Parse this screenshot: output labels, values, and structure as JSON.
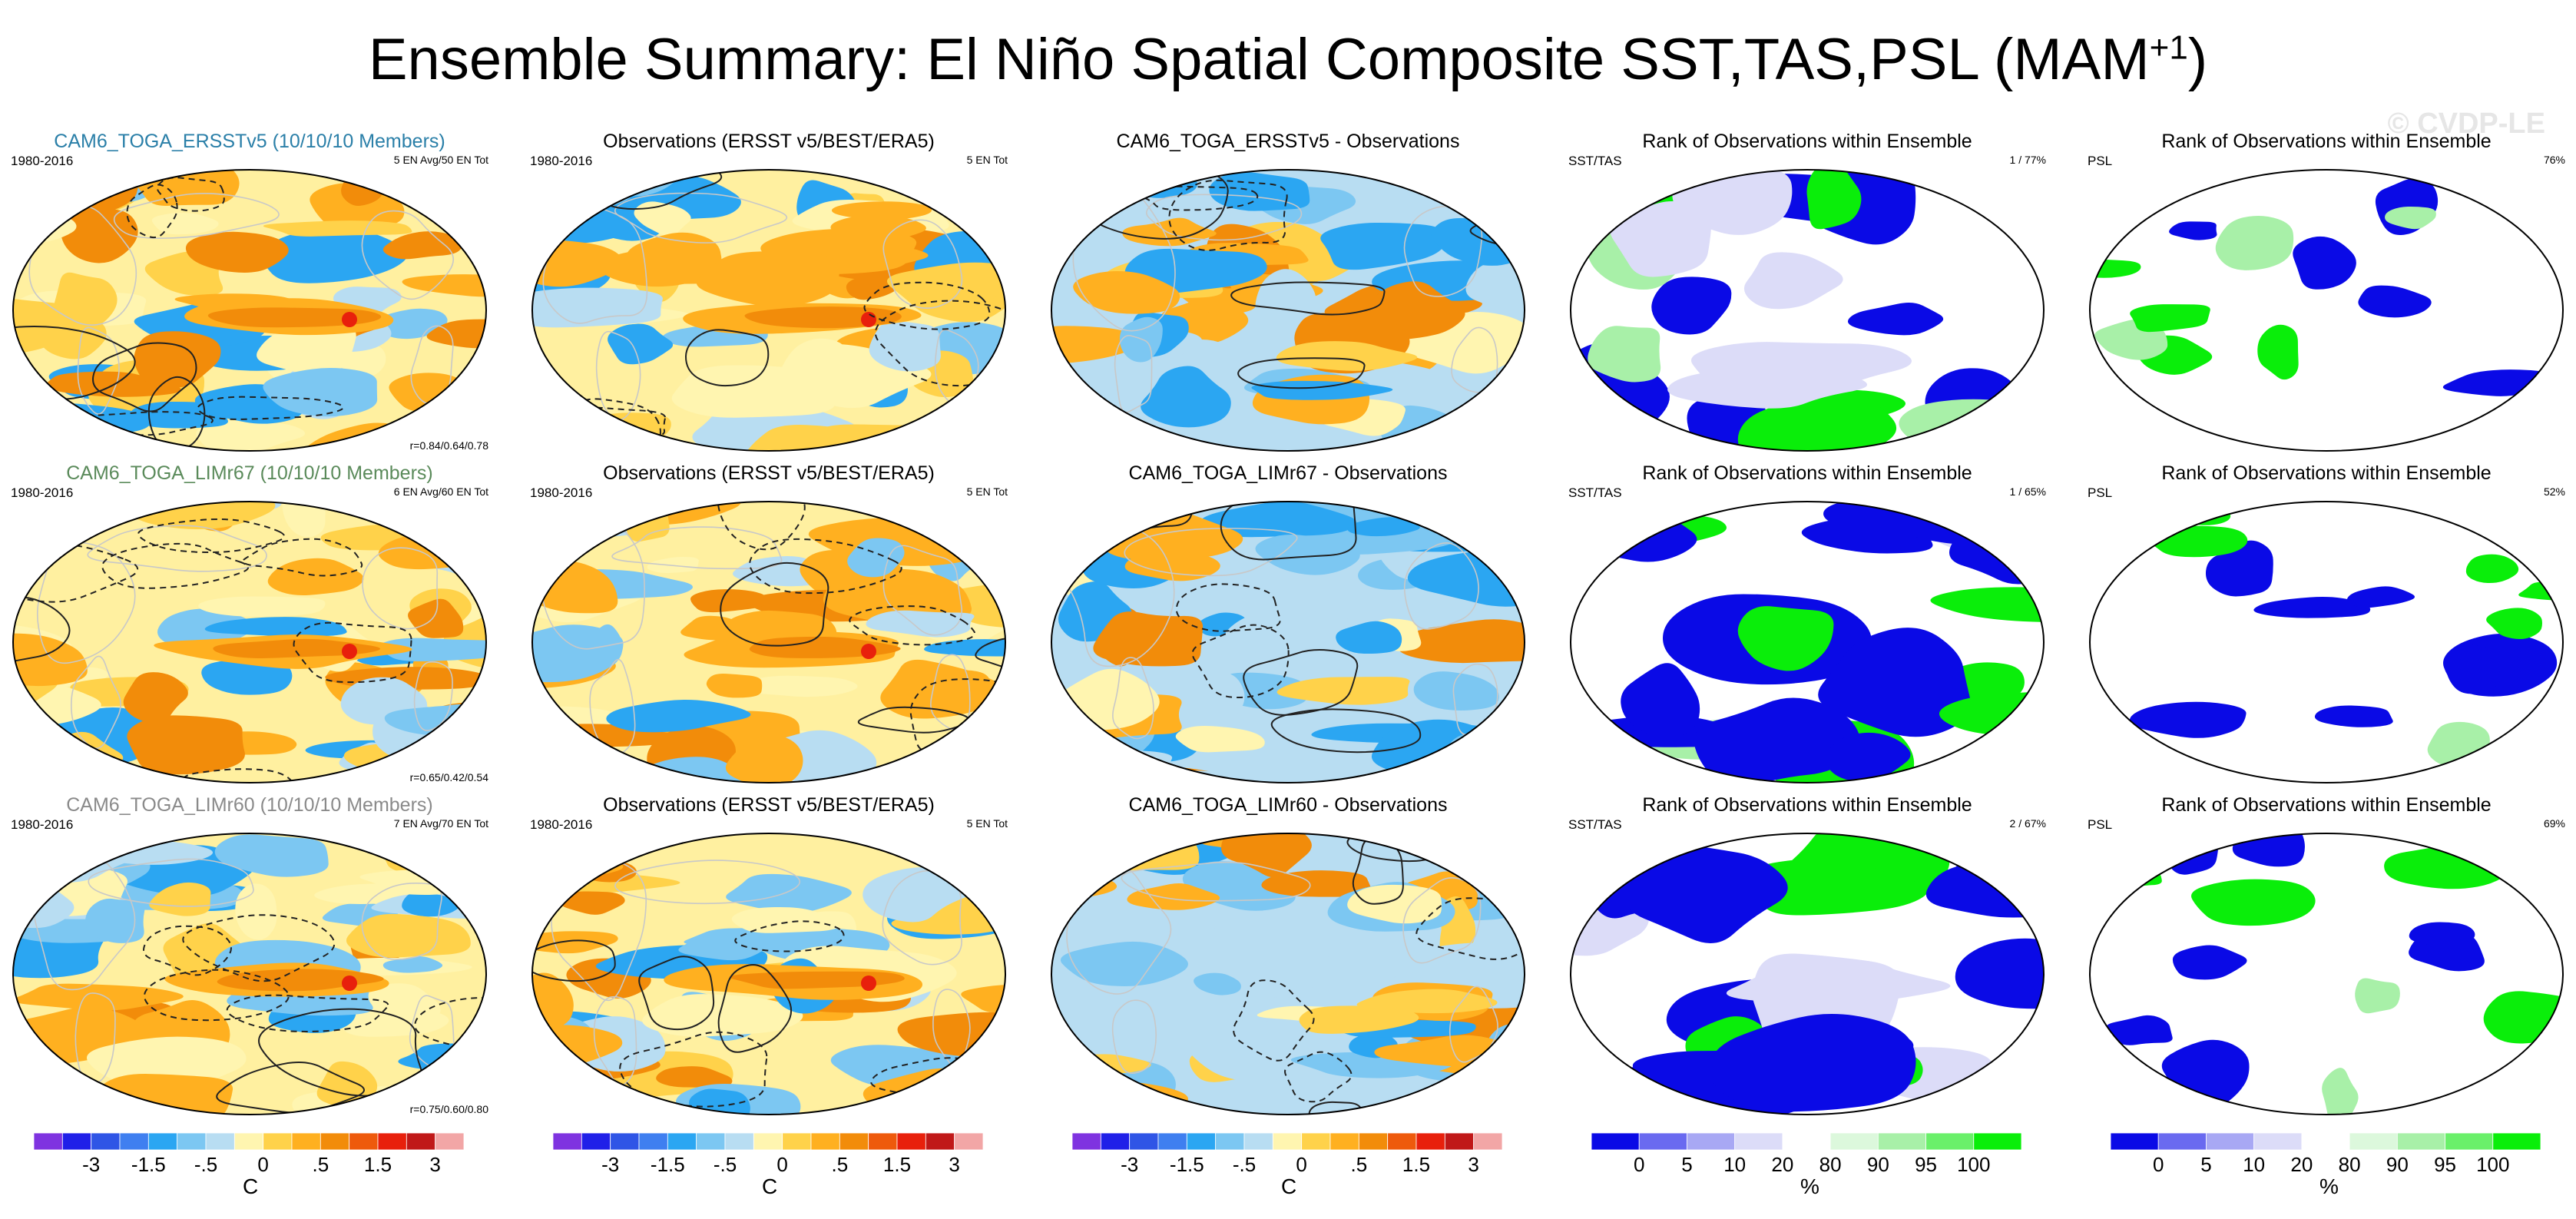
{
  "title": "Ensemble Summary: El Niño Spatial Composite SST,TAS,PSL (MAM",
  "title_sup": "+1",
  "title_close": ")",
  "watermark": "© CVDP-LE",
  "rows": [
    {
      "model": {
        "title": "CAM6_TOGA_ERSSTv5 (10/10/10 Members)",
        "title_color": "#2a7fa8",
        "period": "1980-2016",
        "members": "5 EN Avg/50 EN Tot",
        "corr": "r=0.84/0.64/0.78"
      },
      "obs": {
        "title": "Observations (ERSST v5/BEST/ERA5)",
        "period": "1980-2016",
        "members": "5 EN Tot"
      },
      "diff": {
        "title": "CAM6_TOGA_ERSSTv5 - Observations"
      },
      "rank_sst": {
        "title": "Rank of Observations within Ensemble",
        "label": "SST/TAS",
        "value": "1 /  77%"
      },
      "rank_psl": {
        "title": "Rank of Observations within Ensemble",
        "label": "PSL",
        "value": "76%"
      }
    },
    {
      "model": {
        "title": "CAM6_TOGA_LIMr67 (10/10/10 Members)",
        "title_color": "#5a8a5a",
        "period": "1980-2016",
        "members": "6 EN Avg/60 EN Tot",
        "corr": "r=0.65/0.42/0.54"
      },
      "obs": {
        "title": "Observations (ERSST v5/BEST/ERA5)",
        "period": "1980-2016",
        "members": "5 EN Tot"
      },
      "diff": {
        "title": "CAM6_TOGA_LIMr67 - Observations"
      },
      "rank_sst": {
        "title": "Rank of Observations within Ensemble",
        "label": "SST/TAS",
        "value": "1 /  65%"
      },
      "rank_psl": {
        "title": "Rank of Observations within Ensemble",
        "label": "PSL",
        "value": "52%"
      }
    },
    {
      "model": {
        "title": "CAM6_TOGA_LIMr60 (10/10/10 Members)",
        "title_color": "#8a8a8a",
        "period": "1980-2016",
        "members": "7 EN Avg/70 EN Tot",
        "corr": "r=0.75/0.60/0.80"
      },
      "obs": {
        "title": "Observations (ERSST v5/BEST/ERA5)",
        "period": "1980-2016",
        "members": "5 EN Tot"
      },
      "diff": {
        "title": "CAM6_TOGA_LIMr60 - Observations"
      },
      "rank_sst": {
        "title": "Rank of Observations within Ensemble",
        "label": "SST/TAS",
        "value": "2 /  67%"
      },
      "rank_psl": {
        "title": "Rank of Observations within Ensemble",
        "label": "PSL",
        "value": "69%"
      }
    }
  ],
  "chart_data": [
    {
      "type": "heatmap",
      "title": "El Niño Spatial Composite SST,TAS,PSL (MAM+1) colorbar",
      "units": "C",
      "levels": [
        -4,
        -3,
        -2,
        -1.5,
        -1,
        -0.5,
        -0.25,
        0,
        0.25,
        0.5,
        1,
        1.5,
        2,
        3,
        4
      ],
      "tick_labels": [
        "-3",
        "-1.5",
        "-.5",
        "0",
        ".5",
        "1.5",
        "3"
      ],
      "colors": [
        "#7f33e0",
        "#2020e8",
        "#2f55e6",
        "#3f7ff0",
        "#2ba6f2",
        "#7cc7f2",
        "#b8ddf2",
        "#fff5b0",
        "#ffd24a",
        "#ffb020",
        "#f28c0a",
        "#ee5a0c",
        "#e8200c",
        "#c01818",
        "#f2a6a6"
      ]
    },
    {
      "type": "heatmap",
      "title": "Rank of Observations within Ensemble colorbar",
      "units": "%",
      "levels": [
        0,
        5,
        10,
        20,
        80,
        90,
        95,
        100
      ],
      "tick_labels": [
        "0",
        "5",
        "10",
        "20",
        "80",
        "90",
        "95",
        "100"
      ],
      "colors": [
        "#0a0ae6",
        "#6a6af0",
        "#a8a8f4",
        "#dcdcf8",
        "#ffffff",
        "#dcf8dc",
        "#a8f0a8",
        "#6af06a",
        "#0aee0a"
      ]
    }
  ]
}
